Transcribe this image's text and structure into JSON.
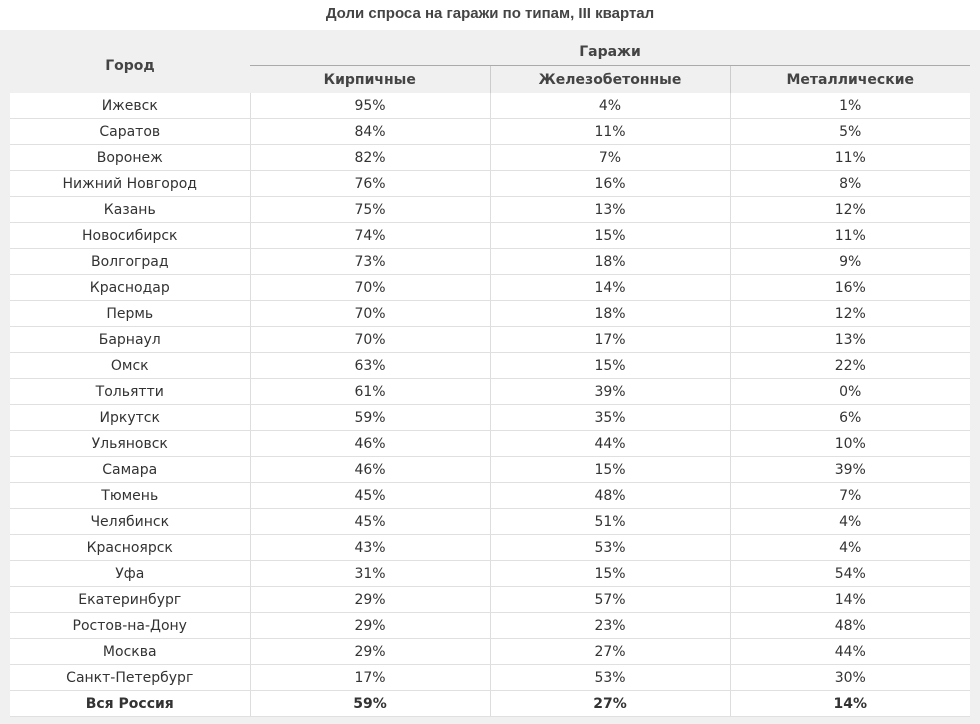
{
  "header": {
    "title": "Доли спроса на гаражи по типам, III квартал"
  },
  "table": {
    "city_header": "Город",
    "group_header": "Гаражи",
    "columns": [
      "Кирпичные",
      "Железобетонные",
      "Металлические"
    ],
    "rows": [
      [
        "Ижевск",
        "95%",
        "4%",
        "1%"
      ],
      [
        "Саратов",
        "84%",
        "11%",
        "5%"
      ],
      [
        "Воронеж",
        "82%",
        "7%",
        "11%"
      ],
      [
        "Нижний Новгород",
        "76%",
        "16%",
        "8%"
      ],
      [
        "Казань",
        "75%",
        "13%",
        "12%"
      ],
      [
        "Новосибирск",
        "74%",
        "15%",
        "11%"
      ],
      [
        "Волгоград",
        "73%",
        "18%",
        "9%"
      ],
      [
        "Краснодар",
        "70%",
        "14%",
        "16%"
      ],
      [
        "Пермь",
        "70%",
        "18%",
        "12%"
      ],
      [
        "Барнаул",
        "70%",
        "17%",
        "13%"
      ],
      [
        "Омск",
        "63%",
        "15%",
        "22%"
      ],
      [
        "Тольятти",
        "61%",
        "39%",
        "0%"
      ],
      [
        "Иркутск",
        "59%",
        "35%",
        "6%"
      ],
      [
        "Ульяновск",
        "46%",
        "44%",
        "10%"
      ],
      [
        "Самара",
        "46%",
        "15%",
        "39%"
      ],
      [
        "Тюмень",
        "45%",
        "48%",
        "7%"
      ],
      [
        "Челябинск",
        "45%",
        "51%",
        "4%"
      ],
      [
        "Красноярск",
        "43%",
        "53%",
        "4%"
      ],
      [
        "Уфа",
        "31%",
        "15%",
        "54%"
      ],
      [
        "Екатеринбург",
        "29%",
        "57%",
        "14%"
      ],
      [
        "Ростов-на-Дону",
        "29%",
        "23%",
        "48%"
      ],
      [
        "Москва",
        "29%",
        "27%",
        "44%"
      ],
      [
        "Санкт-Петербург",
        "17%",
        "53%",
        "30%"
      ],
      [
        "Вся Россия",
        "59%",
        "27%",
        "14%"
      ]
    ]
  }
}
